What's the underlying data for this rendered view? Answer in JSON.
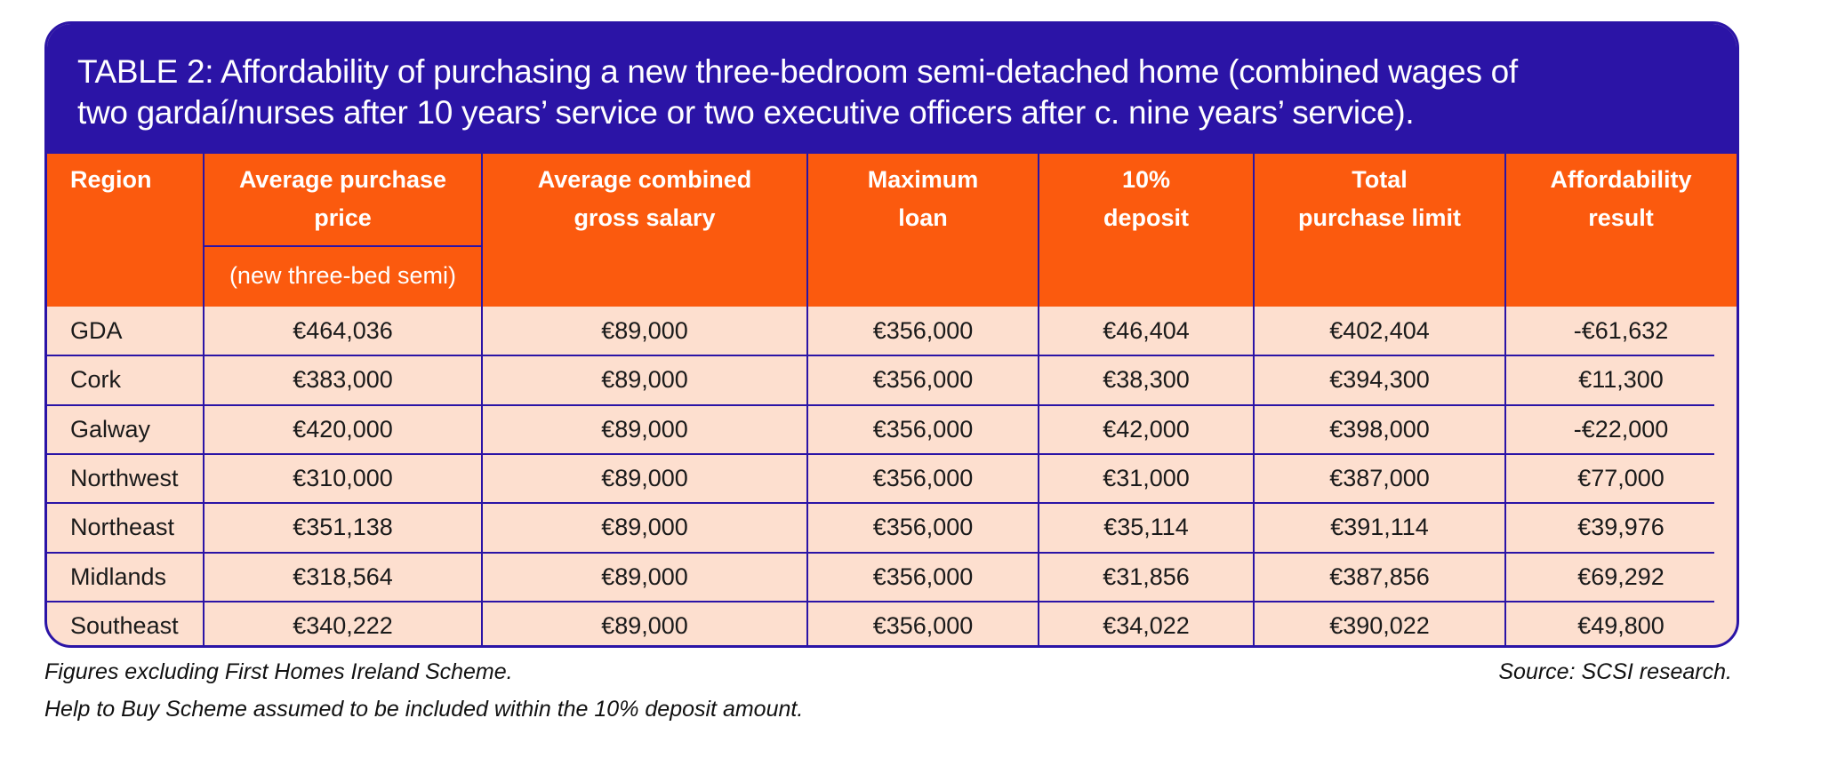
{
  "header": {
    "title_lines": [
      "TABLE 2: Affordability of purchasing a new three-bedroom semi-detached home (combined wages of",
      "two gardaí/nurses after 10 years’ service or two executive officers after c. nine years’ service)."
    ]
  },
  "table": {
    "columns": [
      {
        "lines": [
          "Region"
        ]
      },
      {
        "lines": [
          "Average purchase",
          "price"
        ],
        "sublabel": "(new three-bed semi)"
      },
      {
        "lines": [
          "Average combined",
          "gross salary"
        ]
      },
      {
        "lines": [
          "Maximum",
          "loan"
        ]
      },
      {
        "lines": [
          "10%",
          "deposit"
        ]
      },
      {
        "lines": [
          "Total",
          "purchase limit"
        ]
      },
      {
        "lines": [
          "Affordability",
          "result"
        ]
      }
    ],
    "rows": [
      [
        "GDA",
        "€464,036",
        "€89,000",
        "€356,000",
        "€46,404",
        "€402,404",
        "-€61,632"
      ],
      [
        "Cork",
        "€383,000",
        "€89,000",
        "€356,000",
        "€38,300",
        "€394,300",
        "€11,300"
      ],
      [
        "Galway",
        "€420,000",
        "€89,000",
        "€356,000",
        "€42,000",
        "€398,000",
        "-€22,000"
      ],
      [
        "Northwest",
        "€310,000",
        "€89,000",
        "€356,000",
        "€31,000",
        "€387,000",
        "€77,000"
      ],
      [
        "Northeast",
        "€351,138",
        "€89,000",
        "€356,000",
        "€35,114",
        "€391,114",
        "€39,976"
      ],
      [
        "Midlands",
        "€318,564",
        "€89,000",
        "€356,000",
        "€31,856",
        "€387,856",
        "€69,292"
      ],
      [
        "Southeast",
        "€340,222",
        "€89,000",
        "€356,000",
        "€34,022",
        "€390,022",
        "€49,800"
      ]
    ]
  },
  "footnotes": [
    "Figures excluding First Homes Ireland Scheme.",
    "Help to Buy Scheme assumed to be included within the 10% deposit amount."
  ],
  "source": "Source: SCSI research."
}
